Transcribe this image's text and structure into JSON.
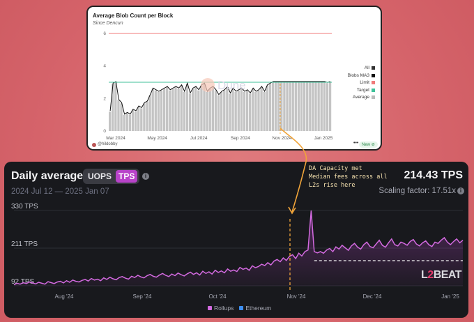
{
  "dune": {
    "title": "Average Blob Count per Block",
    "subtitle": "Since Dencun",
    "handle": "@hildobby",
    "new_label": "New",
    "menu_label": "•••",
    "watermark": "Dune",
    "legend": [
      {
        "label": "All",
        "color": "#333333"
      },
      {
        "label": "Blobs MA3",
        "color": "#111111"
      },
      {
        "label": "Limit",
        "color": "#f07a7a"
      },
      {
        "label": "Target",
        "color": "#3fc29a"
      },
      {
        "label": "Average",
        "color": "#bbbbbb"
      }
    ]
  },
  "l2": {
    "title": "Daily average",
    "toggle": {
      "option_a": "UOPS",
      "option_b": "TPS",
      "active": "TPS"
    },
    "date_range": "2024 Jul 12 — 2025 Jan 07",
    "value": "214.43 TPS",
    "scaling": "Scaling factor: 17.51x",
    "legend": [
      {
        "label": "Rollups",
        "color": "#d36ae0"
      },
      {
        "label": "Ethereum",
        "color": "#3d8ef0"
      }
    ],
    "watermark_l": "L",
    "watermark_2": "2",
    "watermark_beat": "BEAT"
  },
  "annotation": {
    "text": "DA Capacity met\nMedian fees across all\nL2s rise here"
  },
  "chart_data": [
    {
      "type": "bar",
      "title": "Average Blob Count per Block",
      "subtitle": "Since Dencun",
      "x_ticks": [
        "Mar 2024",
        "May 2024",
        "Jul 2024",
        "Sep 2024",
        "Nov 2024",
        "Jan 2025"
      ],
      "y_ticks": [
        0,
        2,
        4,
        6
      ],
      "ylim": [
        0,
        6.5
      ],
      "series": [
        {
          "name": "Average",
          "values": [
            1.2,
            2.9,
            3.0,
            1.9,
            1.7,
            1.0,
            1.1,
            1.0,
            1.3,
            1.2,
            1.5,
            1.4,
            1.7,
            1.8,
            2.2,
            2.6,
            2.5,
            2.4,
            2.5,
            2.6,
            2.7,
            2.5,
            2.6,
            2.7,
            2.6,
            2.8,
            2.4,
            2.9,
            2.3,
            2.6,
            2.7,
            2.5,
            2.8,
            2.9,
            2.4,
            2.6,
            2.7,
            2.5,
            2.2,
            2.4,
            2.5,
            2.7,
            2.3,
            2.6,
            2.4,
            2.5,
            2.6,
            2.4,
            2.5,
            2.3,
            2.6,
            2.4,
            2.5,
            2.7,
            2.4,
            2.8,
            2.9,
            3.0,
            3.0,
            3.0,
            3.0,
            3.0,
            3.0,
            3.0,
            3.0,
            3.0,
            3.0,
            3.0,
            3.0,
            3.0,
            3.0,
            3.0,
            3.0,
            3.0,
            3.0,
            3.0,
            2.95,
            3.0
          ]
        },
        {
          "name": "Target",
          "values": [
            3
          ]
        },
        {
          "name": "Limit",
          "values": [
            6
          ]
        }
      ],
      "legend": [
        "All",
        "Blobs MA3",
        "Limit",
        "Target",
        "Average"
      ],
      "legend_position": "right",
      "grid": false
    },
    {
      "type": "area",
      "title": "Daily average",
      "y_ticks": [
        "330 TPS",
        "211 TPS",
        "92 TPS"
      ],
      "x_ticks": [
        "Aug '24",
        "Sep '24",
        "Oct '24",
        "Nov '24",
        "Dec '24",
        "Jan '25"
      ],
      "ylim": [
        92,
        330
      ],
      "reference_value": 211,
      "series": [
        {
          "name": "Rollups",
          "values": [
            95,
            100,
            97,
            102,
            99,
            104,
            101,
            98,
            103,
            100,
            97,
            105,
            102,
            99,
            104,
            106,
            101,
            108,
            103,
            110,
            106,
            104,
            109,
            112,
            107,
            115,
            110,
            113,
            108,
            117,
            112,
            119,
            114,
            111,
            118,
            121,
            116,
            113,
            122,
            118,
            125,
            120,
            117,
            124,
            128,
            122,
            119,
            126,
            131,
            125,
            121,
            129,
            124,
            132,
            127,
            123,
            130,
            135,
            128,
            133,
            126,
            138,
            131,
            136,
            129,
            141,
            134,
            139,
            133,
            145,
            138,
            142,
            137,
            150,
            144,
            148,
            141,
            155,
            149,
            153,
            160,
            156,
            165,
            158,
            170,
            175,
            168,
            180,
            172,
            185,
            190,
            178,
            195,
            186,
            200,
            205,
            330,
            200,
            196,
            200,
            195,
            205,
            210,
            200,
            215,
            208,
            220,
            212,
            204,
            218,
            226,
            214,
            208,
            222,
            230,
            216,
            212,
            224,
            236,
            220,
            214,
            228,
            240,
            222,
            218,
            230,
            226,
            220,
            232,
            238,
            224,
            218,
            228,
            234,
            222,
            216,
            230,
            226,
            236,
            244,
            230,
            222,
            232,
            240,
            228,
            236
          ]
        },
        {
          "name": "Ethereum",
          "values": []
        }
      ],
      "legend": [
        "Rollups",
        "Ethereum"
      ],
      "legend_position": "bottom",
      "grid": true
    }
  ]
}
